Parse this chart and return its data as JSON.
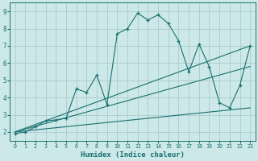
{
  "background_color": "#cce8e8",
  "grid_color": "#aacccc",
  "line_color": "#1a7070",
  "xlabel": "Humidex (Indice chaleur)",
  "xlim": [
    -0.5,
    23.5
  ],
  "ylim": [
    1.5,
    9.5
  ],
  "xticks": [
    0,
    1,
    2,
    3,
    4,
    5,
    6,
    7,
    8,
    9,
    10,
    11,
    12,
    13,
    14,
    15,
    16,
    17,
    18,
    19,
    20,
    21,
    22,
    23
  ],
  "yticks": [
    2,
    3,
    4,
    5,
    6,
    7,
    8,
    9
  ],
  "series_main": {
    "x": [
      0,
      1,
      2,
      3,
      4,
      5,
      6,
      7,
      8,
      9,
      10,
      11,
      12,
      13,
      14,
      15,
      16,
      17,
      18,
      19,
      20,
      21,
      22,
      23
    ],
    "y": [
      1.9,
      2.0,
      2.3,
      2.65,
      2.7,
      2.8,
      4.5,
      4.3,
      5.3,
      3.6,
      7.7,
      8.0,
      8.9,
      8.5,
      8.8,
      8.3,
      7.3,
      5.5,
      7.1,
      5.8,
      3.7,
      3.4,
      4.7,
      7.0
    ]
  },
  "ref_lines": [
    {
      "x": [
        0,
        23
      ],
      "y": [
        2.0,
        7.0
      ]
    },
    {
      "x": [
        0,
        23
      ],
      "y": [
        2.0,
        5.8
      ]
    },
    {
      "x": [
        0,
        23
      ],
      "y": [
        2.0,
        3.4
      ]
    }
  ],
  "title_fontsize": 7,
  "tick_fontsize": 5,
  "xlabel_fontsize": 6.5
}
